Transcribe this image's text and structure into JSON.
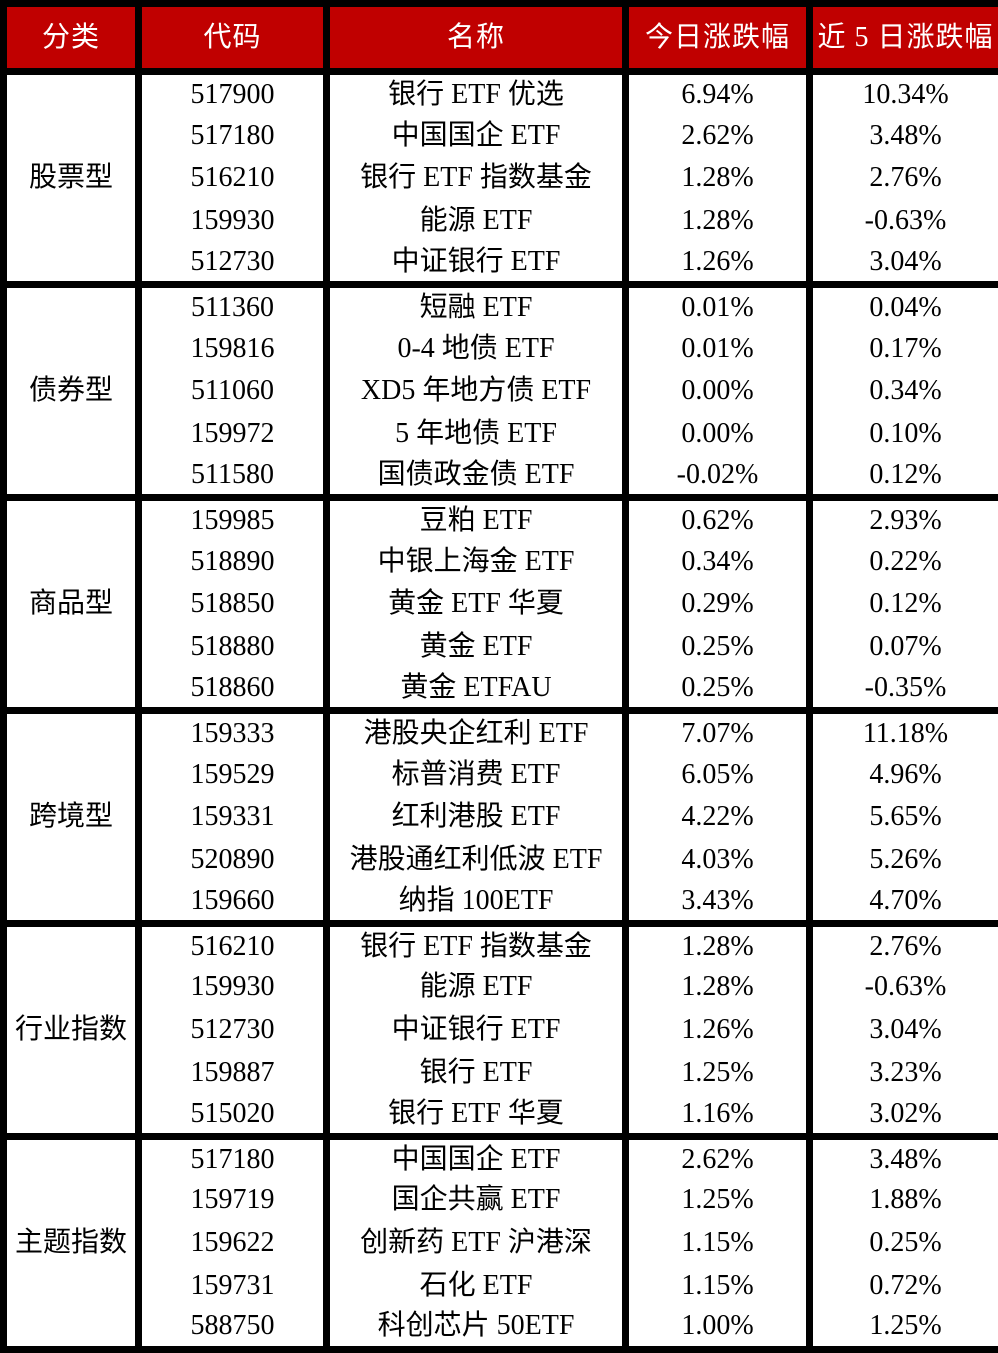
{
  "colors": {
    "header_bg": "#c00000",
    "header_text": "#ffffff",
    "border": "#000000",
    "body_bg": "#ffffff",
    "body_text": "#000000"
  },
  "chart_data": {
    "type": "table",
    "columns": [
      "分类",
      "代码",
      "名称",
      "今日涨跌幅",
      "近 5 日涨跌幅"
    ],
    "groups": [
      {
        "category": "股票型",
        "rows": [
          {
            "code": "517900",
            "name": "银行 ETF 优选",
            "today": "6.94%",
            "d5": "10.34%"
          },
          {
            "code": "517180",
            "name": "中国国企 ETF",
            "today": "2.62%",
            "d5": "3.48%"
          },
          {
            "code": "516210",
            "name": "银行 ETF 指数基金",
            "today": "1.28%",
            "d5": "2.76%"
          },
          {
            "code": "159930",
            "name": "能源 ETF",
            "today": "1.28%",
            "d5": "-0.63%"
          },
          {
            "code": "512730",
            "name": "中证银行 ETF",
            "today": "1.26%",
            "d5": "3.04%"
          }
        ]
      },
      {
        "category": "债券型",
        "rows": [
          {
            "code": "511360",
            "name": "短融 ETF",
            "today": "0.01%",
            "d5": "0.04%"
          },
          {
            "code": "159816",
            "name": "0-4 地债 ETF",
            "today": "0.01%",
            "d5": "0.17%"
          },
          {
            "code": "511060",
            "name": "XD5 年地方债 ETF",
            "today": "0.00%",
            "d5": "0.34%"
          },
          {
            "code": "159972",
            "name": "5 年地债 ETF",
            "today": "0.00%",
            "d5": "0.10%"
          },
          {
            "code": "511580",
            "name": "国债政金债 ETF",
            "today": "-0.02%",
            "d5": "0.12%"
          }
        ]
      },
      {
        "category": "商品型",
        "rows": [
          {
            "code": "159985",
            "name": "豆粕 ETF",
            "today": "0.62%",
            "d5": "2.93%"
          },
          {
            "code": "518890",
            "name": "中银上海金 ETF",
            "today": "0.34%",
            "d5": "0.22%"
          },
          {
            "code": "518850",
            "name": "黄金 ETF 华夏",
            "today": "0.29%",
            "d5": "0.12%"
          },
          {
            "code": "518880",
            "name": "黄金 ETF",
            "today": "0.25%",
            "d5": "0.07%"
          },
          {
            "code": "518860",
            "name": "黄金 ETFAU",
            "today": "0.25%",
            "d5": "-0.35%"
          }
        ]
      },
      {
        "category": "跨境型",
        "rows": [
          {
            "code": "159333",
            "name": "港股央企红利 ETF",
            "today": "7.07%",
            "d5": "11.18%"
          },
          {
            "code": "159529",
            "name": "标普消费 ETF",
            "today": "6.05%",
            "d5": "4.96%"
          },
          {
            "code": "159331",
            "name": "红利港股 ETF",
            "today": "4.22%",
            "d5": "5.65%"
          },
          {
            "code": "520890",
            "name": "港股通红利低波 ETF",
            "today": "4.03%",
            "d5": "5.26%"
          },
          {
            "code": "159660",
            "name": "纳指 100ETF",
            "today": "3.43%",
            "d5": "4.70%"
          }
        ]
      },
      {
        "category": "行业指数",
        "rows": [
          {
            "code": "516210",
            "name": "银行 ETF 指数基金",
            "today": "1.28%",
            "d5": "2.76%"
          },
          {
            "code": "159930",
            "name": "能源 ETF",
            "today": "1.28%",
            "d5": "-0.63%"
          },
          {
            "code": "512730",
            "name": "中证银行 ETF",
            "today": "1.26%",
            "d5": "3.04%"
          },
          {
            "code": "159887",
            "name": "银行 ETF",
            "today": "1.25%",
            "d5": "3.23%"
          },
          {
            "code": "515020",
            "name": "银行 ETF 华夏",
            "today": "1.16%",
            "d5": "3.02%"
          }
        ]
      },
      {
        "category": "主题指数",
        "rows": [
          {
            "code": "517180",
            "name": "中国国企 ETF",
            "today": "2.62%",
            "d5": "3.48%"
          },
          {
            "code": "159719",
            "name": "国企共赢 ETF",
            "today": "1.25%",
            "d5": "1.88%"
          },
          {
            "code": "159622",
            "name": "创新药 ETF 沪港深",
            "today": "1.15%",
            "d5": "0.25%"
          },
          {
            "code": "159731",
            "name": "石化 ETF",
            "today": "1.15%",
            "d5": "0.72%"
          },
          {
            "code": "588750",
            "name": "科创芯片 50ETF",
            "today": "1.00%",
            "d5": "1.25%"
          }
        ]
      }
    ]
  }
}
